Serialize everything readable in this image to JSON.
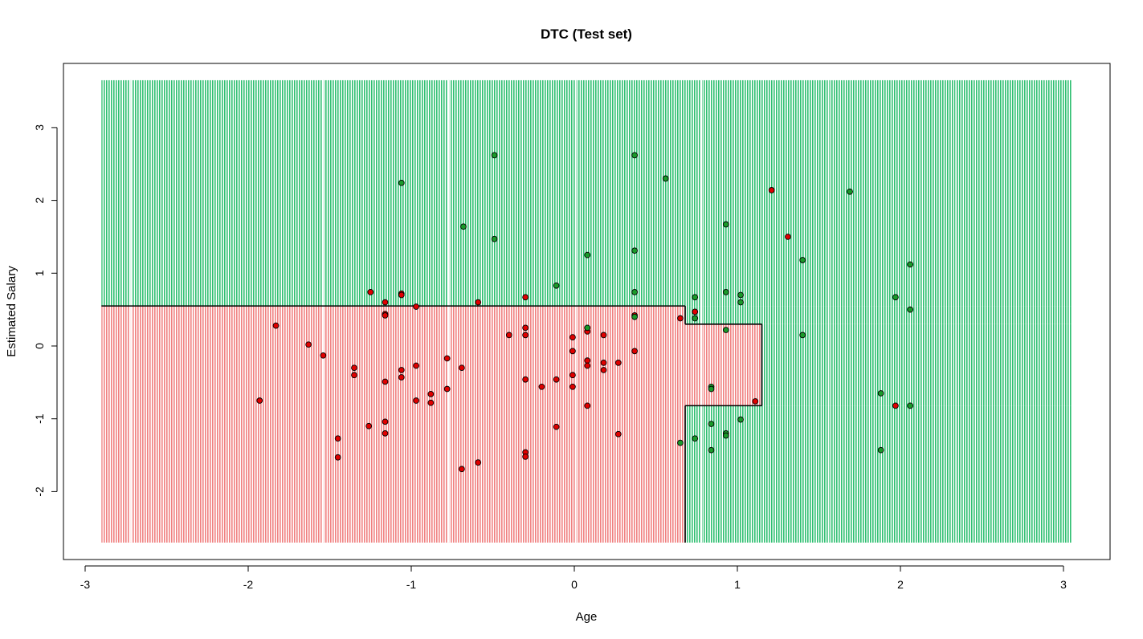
{
  "chart_data": {
    "type": "scatter",
    "title": "DTC (Test set)",
    "xlabel": "Age",
    "ylabel": "Estimated Salary",
    "xlim": [
      -3,
      3
    ],
    "ylim": [
      -3,
      4
    ],
    "x_ticks": [
      "-3",
      "-2",
      "-1",
      "0",
      "1",
      "2",
      "3"
    ],
    "y_ticks": [
      "-2",
      "-1",
      "0",
      "1",
      "2",
      "3"
    ],
    "x_tick_values": [
      -3,
      -2,
      -1,
      0,
      1,
      2,
      3
    ],
    "y_tick_values": [
      -2,
      -1,
      0,
      1,
      2,
      3
    ],
    "grid": false,
    "background": {
      "x_range": [
        -2.9,
        3.05
      ],
      "y_range": [
        -2.7,
        3.65
      ],
      "colors": {
        "0": "#f08080",
        "1": "#2fbf71"
      }
    },
    "decision_regions": [
      {
        "class": 0,
        "x": [
          -2.9,
          0.68
        ],
        "y": [
          -2.7,
          0.55
        ]
      },
      {
        "class": 0,
        "x": [
          0.68,
          1.15
        ],
        "y": [
          -0.82,
          0.3
        ]
      },
      {
        "class": 1,
        "x": [
          -2.9,
          3.05
        ],
        "y": [
          0.55,
          3.65
        ]
      },
      {
        "class": 1,
        "x": [
          0.68,
          3.05
        ],
        "y": [
          0.3,
          0.55
        ]
      },
      {
        "class": 1,
        "x": [
          1.15,
          3.05
        ],
        "y": [
          -0.82,
          0.3
        ]
      },
      {
        "class": 1,
        "x": [
          0.68,
          3.05
        ],
        "y": [
          -2.7,
          -0.82
        ]
      }
    ],
    "boundary": [
      [
        [
          -2.9,
          0.55
        ],
        [
          0.68,
          0.55
        ]
      ],
      [
        [
          0.68,
          0.55
        ],
        [
          0.68,
          0.3
        ]
      ],
      [
        [
          0.68,
          0.3
        ],
        [
          1.15,
          0.3
        ]
      ],
      [
        [
          1.15,
          0.3
        ],
        [
          1.15,
          -0.82
        ]
      ],
      [
        [
          1.15,
          -0.82
        ],
        [
          0.68,
          -0.82
        ]
      ],
      [
        [
          0.68,
          -0.82
        ],
        [
          0.68,
          -2.7
        ]
      ]
    ],
    "point_colors": {
      "0": "#e00000",
      "1": "#1a9a2a"
    },
    "series": [
      {
        "class": 0,
        "points": [
          [
            -1.06,
            0.72
          ],
          [
            -1.06,
            0.7
          ],
          [
            -1.25,
            0.74
          ],
          [
            -1.16,
            0.6
          ],
          [
            -0.97,
            0.54
          ],
          [
            -1.16,
            0.44
          ],
          [
            -1.16,
            0.42
          ],
          [
            -0.59,
            0.6
          ],
          [
            -0.3,
            0.67
          ],
          [
            -1.83,
            0.28
          ],
          [
            -1.63,
            0.02
          ],
          [
            -1.54,
            -0.13
          ],
          [
            -1.35,
            -0.3
          ],
          [
            -1.35,
            -0.4
          ],
          [
            -1.06,
            -0.33
          ],
          [
            -1.06,
            -0.43
          ],
          [
            -1.16,
            -0.49
          ],
          [
            -0.97,
            -0.27
          ],
          [
            -0.78,
            -0.17
          ],
          [
            -0.69,
            -0.3
          ],
          [
            -0.78,
            -0.59
          ],
          [
            -0.88,
            -0.66
          ],
          [
            -0.88,
            -0.78
          ],
          [
            -0.97,
            -0.75
          ],
          [
            -1.93,
            -0.75
          ],
          [
            -1.26,
            -1.1
          ],
          [
            -1.16,
            -1.04
          ],
          [
            -1.16,
            -1.2
          ],
          [
            -1.45,
            -1.27
          ],
          [
            -1.45,
            -1.53
          ],
          [
            -0.69,
            -1.69
          ],
          [
            -0.59,
            -1.6
          ],
          [
            -0.3,
            -1.46
          ],
          [
            -0.3,
            -1.52
          ],
          [
            -0.4,
            0.15
          ],
          [
            -0.3,
            0.25
          ],
          [
            -0.3,
            0.15
          ],
          [
            -0.01,
            0.12
          ],
          [
            -0.01,
            -0.07
          ],
          [
            0.08,
            -0.2
          ],
          [
            0.08,
            -0.27
          ],
          [
            0.18,
            -0.23
          ],
          [
            0.18,
            -0.33
          ],
          [
            0.27,
            -0.23
          ],
          [
            0.18,
            0.15
          ],
          [
            0.08,
            0.2
          ],
          [
            -0.3,
            -0.46
          ],
          [
            -0.11,
            -0.46
          ],
          [
            -0.2,
            -0.56
          ],
          [
            -0.01,
            -0.4
          ],
          [
            -0.01,
            -0.56
          ],
          [
            0.08,
            -0.82
          ],
          [
            -0.11,
            -1.11
          ],
          [
            0.27,
            -1.21
          ],
          [
            0.37,
            -0.07
          ],
          [
            0.37,
            0.42
          ],
          [
            0.65,
            0.38
          ],
          [
            0.74,
            0.47
          ],
          [
            1.11,
            -0.76
          ],
          [
            1.21,
            2.14
          ],
          [
            1.31,
            1.5
          ],
          [
            1.97,
            -0.82
          ]
        ]
      },
      {
        "class": 1,
        "points": [
          [
            -1.06,
            2.24
          ],
          [
            -0.49,
            2.62
          ],
          [
            0.37,
            2.62
          ],
          [
            0.56,
            2.3
          ],
          [
            -0.68,
            1.64
          ],
          [
            -0.49,
            1.47
          ],
          [
            0.08,
            1.25
          ],
          [
            0.37,
            1.31
          ],
          [
            -0.11,
            0.83
          ],
          [
            0.37,
            0.74
          ],
          [
            0.37,
            0.4
          ],
          [
            0.08,
            0.25
          ],
          [
            0.74,
            0.67
          ],
          [
            0.74,
            0.38
          ],
          [
            0.93,
            0.74
          ],
          [
            1.02,
            0.7
          ],
          [
            1.02,
            0.6
          ],
          [
            0.93,
            1.67
          ],
          [
            0.93,
            0.22
          ],
          [
            0.84,
            -0.56
          ],
          [
            0.84,
            -0.59
          ],
          [
            0.84,
            -1.07
          ],
          [
            1.02,
            -1.01
          ],
          [
            0.93,
            -1.2
          ],
          [
            0.93,
            -1.23
          ],
          [
            0.74,
            -1.27
          ],
          [
            0.65,
            -1.33
          ],
          [
            0.84,
            -1.43
          ],
          [
            1.4,
            1.18
          ],
          [
            1.4,
            0.15
          ],
          [
            1.69,
            2.12
          ],
          [
            1.97,
            0.67
          ],
          [
            2.06,
            1.12
          ],
          [
            2.06,
            0.5
          ],
          [
            1.88,
            -0.65
          ],
          [
            2.06,
            -0.82
          ],
          [
            1.88,
            -1.43
          ]
        ]
      }
    ]
  }
}
